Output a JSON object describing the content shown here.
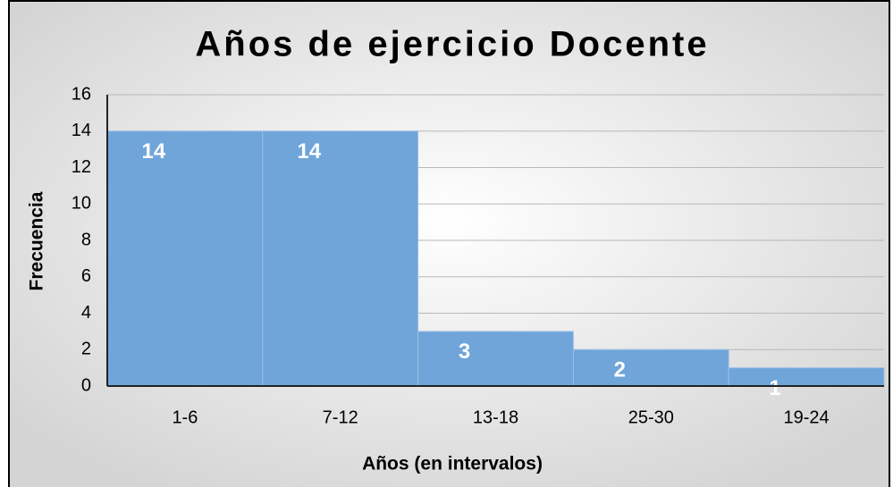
{
  "chart_data": {
    "type": "bar",
    "title": "Años de ejercicio Docente",
    "x_label": "Años (en intervalos)",
    "y_label": "Frecuencia",
    "categories": [
      "1-6",
      "7-12",
      "13-18",
      "25-30",
      "19-24"
    ],
    "values": [
      14,
      14,
      3,
      2,
      1
    ],
    "color": "#6fa5d9",
    "ylim": [
      0,
      16
    ],
    "yticks": [
      0,
      2,
      4,
      6,
      8,
      10,
      12,
      14,
      16
    ],
    "grid": true
  }
}
